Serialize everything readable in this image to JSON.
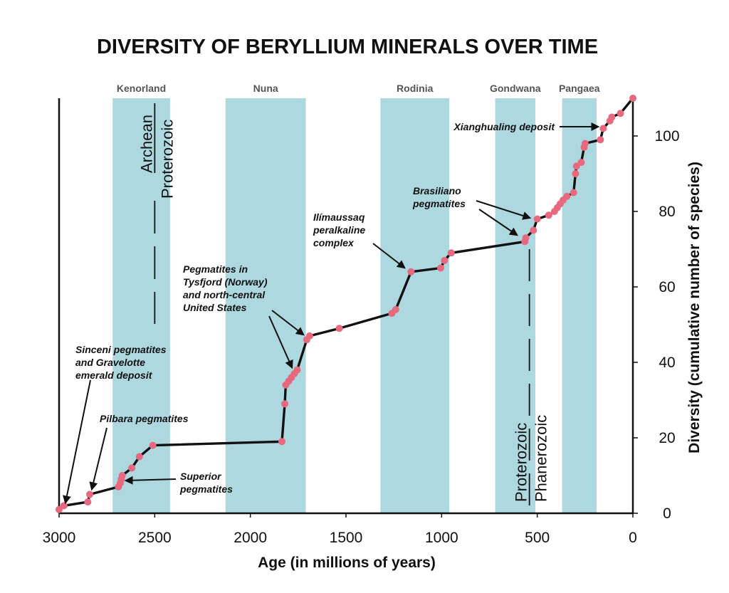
{
  "chart_data": {
    "type": "line",
    "title": "DIVERSITY OF BERYLLIUM MINERALS OVER TIME",
    "xlabel": "Age (in millions of years)",
    "ylabel": "Diversity (cumulative number of species)",
    "xlim": [
      3000,
      0
    ],
    "ylim": [
      0,
      110
    ],
    "x_ticks": [
      3000,
      2500,
      2000,
      1500,
      1000,
      500,
      0
    ],
    "y_ticks": [
      0,
      20,
      40,
      60,
      80,
      100
    ],
    "colors": {
      "band": "#add8e0",
      "line": "#111111",
      "point": "#e8687e"
    },
    "supercontinents": [
      {
        "name": "Kenorland",
        "start": 2720,
        "end": 2420
      },
      {
        "name": "Nuna",
        "start": 2130,
        "end": 1710
      },
      {
        "name": "Rodinia",
        "start": 1320,
        "end": 960
      },
      {
        "name": "Gondwana",
        "start": 720,
        "end": 510
      },
      {
        "name": "Pangaea",
        "start": 370,
        "end": 190
      }
    ],
    "eon_boundaries": [
      {
        "age": 2500,
        "older": "Archean",
        "younger": "Proterozoic"
      },
      {
        "age": 541,
        "older": "Proterozoic",
        "younger": "Phanerozoic"
      }
    ],
    "series": [
      {
        "x": [
          3000,
          2975,
          2850,
          2840,
          2690,
          2680,
          2675,
          2670,
          2620,
          2580,
          2510,
          1835,
          1820,
          1815,
          1800,
          1785,
          1770,
          1755,
          1705,
          1690,
          1535,
          1260,
          1240,
          1160,
          1005,
          985,
          950,
          565,
          560,
          520,
          500,
          440,
          410,
          395,
          380,
          365,
          345,
          310,
          300,
          295,
          270,
          255,
          250,
          170,
          155,
          120,
          110,
          65,
          0
        ],
        "y": [
          1,
          2,
          3,
          5,
          7,
          8,
          9,
          10,
          12,
          15,
          18,
          19,
          29,
          34,
          35,
          36,
          37,
          38,
          46,
          47,
          49,
          53,
          54,
          64,
          65,
          67,
          69,
          72,
          73,
          75,
          78,
          79,
          80,
          81,
          82,
          83,
          84,
          85,
          90,
          92,
          93,
          97,
          98,
          99,
          102,
          104,
          105,
          106,
          110
        ]
      }
    ],
    "annotations": [
      {
        "lines": [
          "Sinceni pegmatites",
          "and Gravelotte",
          "emerald deposit"
        ]
      },
      {
        "lines": [
          "Pilbara pegmatites"
        ]
      },
      {
        "lines": [
          "Superior",
          "pegmatites"
        ]
      },
      {
        "lines": [
          "Pegmatites in",
          "Tysfjord (Norway)",
          "and north-central",
          "United States"
        ]
      },
      {
        "lines": [
          "Ilímaussaq",
          "peralkaline",
          "complex"
        ]
      },
      {
        "lines": [
          "Brasiliano",
          "pegmatites"
        ]
      },
      {
        "lines": [
          "Xianghualing deposit"
        ]
      }
    ]
  }
}
